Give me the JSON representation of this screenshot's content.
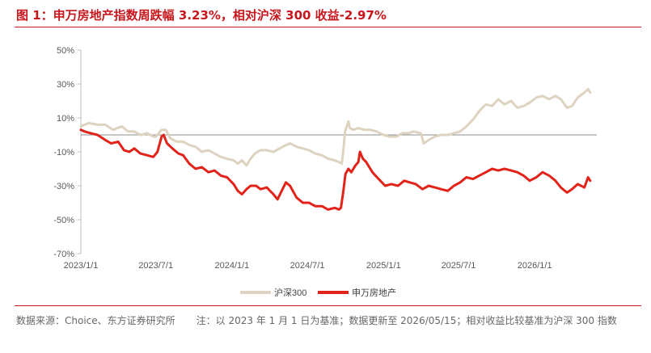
{
  "title": "图 1：申万房地产指数周跌幅 3.23%，相对沪深 300 收益-2.97%",
  "footer": {
    "source": "数据来源：Choice、东方证券研究所",
    "note": "注：以 2023 年 1 月 1 日为基准；数据更新至 2026/05/15；相对收益比较基准为沪深 300 指数"
  },
  "colors": {
    "hs300": "#ddd3c0",
    "realestate": "#e2231a",
    "title": "#c8161d"
  },
  "chart_data": {
    "type": "line",
    "ylim": [
      -70,
      50
    ],
    "yticks": [
      "50%",
      "30%",
      "10%",
      "-10%",
      "-30%",
      "-50%",
      "-70%"
    ],
    "xticks": [
      "2023/1/1",
      "2023/7/1",
      "2024/1/1",
      "2024/7/1",
      "2025/1/1",
      "2025/7/1",
      "2026/1/1"
    ],
    "legend_position": "bottom",
    "series": [
      {
        "name": "沪深300",
        "color": "#ddd3c0",
        "points": [
          [
            "2023-01-01",
            5
          ],
          [
            "2023-01-20",
            7
          ],
          [
            "2023-02-10",
            6
          ],
          [
            "2023-03-01",
            6
          ],
          [
            "2023-03-20",
            3
          ],
          [
            "2023-04-10",
            5
          ],
          [
            "2023-04-25",
            2
          ],
          [
            "2023-05-10",
            2
          ],
          [
            "2023-05-25",
            0
          ],
          [
            "2023-06-10",
            1
          ],
          [
            "2023-06-25",
            -1
          ],
          [
            "2023-07-01",
            -1
          ],
          [
            "2023-07-15",
            3
          ],
          [
            "2023-07-25",
            3
          ],
          [
            "2023-08-05",
            -2
          ],
          [
            "2023-08-20",
            -4
          ],
          [
            "2023-09-05",
            -4
          ],
          [
            "2023-09-20",
            -6
          ],
          [
            "2023-10-05",
            -7
          ],
          [
            "2023-10-20",
            -10
          ],
          [
            "2023-11-05",
            -9
          ],
          [
            "2023-11-20",
            -11
          ],
          [
            "2023-12-05",
            -13
          ],
          [
            "2023-12-20",
            -14
          ],
          [
            "2024-01-05",
            -15
          ],
          [
            "2024-01-15",
            -17
          ],
          [
            "2024-01-25",
            -15
          ],
          [
            "2024-02-05",
            -18
          ],
          [
            "2024-02-15",
            -14
          ],
          [
            "2024-02-25",
            -11
          ],
          [
            "2024-03-10",
            -9
          ],
          [
            "2024-03-25",
            -9
          ],
          [
            "2024-04-10",
            -10
          ],
          [
            "2024-04-25",
            -8
          ],
          [
            "2024-05-10",
            -6
          ],
          [
            "2024-05-20",
            -5
          ],
          [
            "2024-06-05",
            -7
          ],
          [
            "2024-06-20",
            -8
          ],
          [
            "2024-07-05",
            -9
          ],
          [
            "2024-07-20",
            -11
          ],
          [
            "2024-08-05",
            -12
          ],
          [
            "2024-08-20",
            -14
          ],
          [
            "2024-09-05",
            -15
          ],
          [
            "2024-09-15",
            -16
          ],
          [
            "2024-09-22",
            -17
          ],
          [
            "2024-09-26",
            -9
          ],
          [
            "2024-09-30",
            2
          ],
          [
            "2024-10-08",
            8
          ],
          [
            "2024-10-12",
            4
          ],
          [
            "2024-10-20",
            3
          ],
          [
            "2024-11-01",
            4
          ],
          [
            "2024-11-15",
            3
          ],
          [
            "2024-12-01",
            3
          ],
          [
            "2024-12-15",
            2
          ],
          [
            "2025-01-01",
            0
          ],
          [
            "2025-01-15",
            -1
          ],
          [
            "2025-02-01",
            -1
          ],
          [
            "2025-02-15",
            1
          ],
          [
            "2025-03-01",
            1
          ],
          [
            "2025-03-15",
            2
          ],
          [
            "2025-04-01",
            1
          ],
          [
            "2025-04-08",
            -5
          ],
          [
            "2025-04-20",
            -3
          ],
          [
            "2025-05-05",
            -1
          ],
          [
            "2025-05-20",
            0
          ],
          [
            "2025-06-05",
            0
          ],
          [
            "2025-06-20",
            1
          ],
          [
            "2025-07-05",
            2
          ],
          [
            "2025-07-20",
            5
          ],
          [
            "2025-08-05",
            9
          ],
          [
            "2025-08-20",
            14
          ],
          [
            "2025-09-05",
            18
          ],
          [
            "2025-09-20",
            17
          ],
          [
            "2025-10-05",
            21
          ],
          [
            "2025-10-20",
            18
          ],
          [
            "2025-11-05",
            20
          ],
          [
            "2025-11-20",
            16
          ],
          [
            "2025-12-05",
            17
          ],
          [
            "2025-12-20",
            19
          ],
          [
            "2026-01-05",
            22
          ],
          [
            "2026-01-20",
            23
          ],
          [
            "2026-02-05",
            21
          ],
          [
            "2026-02-20",
            23
          ],
          [
            "2026-03-05",
            21
          ],
          [
            "2026-03-20",
            16
          ],
          [
            "2026-04-01",
            17
          ],
          [
            "2026-04-15",
            22
          ],
          [
            "2026-05-01",
            25
          ],
          [
            "2026-05-10",
            27
          ],
          [
            "2026-05-15",
            25
          ]
        ]
      },
      {
        "name": "申万房地产",
        "color": "#e2231a",
        "points": [
          [
            "2023-01-01",
            3
          ],
          [
            "2023-01-10",
            2
          ],
          [
            "2023-01-25",
            1
          ],
          [
            "2023-02-10",
            0
          ],
          [
            "2023-03-01",
            -3
          ],
          [
            "2023-03-15",
            -5
          ],
          [
            "2023-04-01",
            -4
          ],
          [
            "2023-04-15",
            -9
          ],
          [
            "2023-04-28",
            -10
          ],
          [
            "2023-05-10",
            -8
          ],
          [
            "2023-05-25",
            -11
          ],
          [
            "2023-06-10",
            -12
          ],
          [
            "2023-06-25",
            -13
          ],
          [
            "2023-07-05",
            -10
          ],
          [
            "2023-07-15",
            -1
          ],
          [
            "2023-07-20",
            0
          ],
          [
            "2023-07-28",
            -5
          ],
          [
            "2023-08-10",
            -8
          ],
          [
            "2023-08-25",
            -11
          ],
          [
            "2023-09-05",
            -12
          ],
          [
            "2023-09-20",
            -17
          ],
          [
            "2023-10-05",
            -20
          ],
          [
            "2023-10-20",
            -19
          ],
          [
            "2023-11-05",
            -22
          ],
          [
            "2023-11-20",
            -21
          ],
          [
            "2023-12-05",
            -24
          ],
          [
            "2023-12-20",
            -25
          ],
          [
            "2024-01-05",
            -29
          ],
          [
            "2024-01-15",
            -33
          ],
          [
            "2024-01-25",
            -35
          ],
          [
            "2024-02-05",
            -32
          ],
          [
            "2024-02-15",
            -30
          ],
          [
            "2024-02-28",
            -30
          ],
          [
            "2024-03-10",
            -32
          ],
          [
            "2024-03-25",
            -31
          ],
          [
            "2024-04-10",
            -35
          ],
          [
            "2024-04-20",
            -38
          ],
          [
            "2024-04-28",
            -34
          ],
          [
            "2024-05-10",
            -28
          ],
          [
            "2024-05-20",
            -30
          ],
          [
            "2024-06-05",
            -37
          ],
          [
            "2024-06-20",
            -40
          ],
          [
            "2024-07-05",
            -40
          ],
          [
            "2024-07-20",
            -42
          ],
          [
            "2024-08-05",
            -42
          ],
          [
            "2024-08-20",
            -44
          ],
          [
            "2024-09-05",
            -43
          ],
          [
            "2024-09-15",
            -44
          ],
          [
            "2024-09-20",
            -43
          ],
          [
            "2024-09-26",
            -33
          ],
          [
            "2024-10-01",
            -23
          ],
          [
            "2024-10-08",
            -20
          ],
          [
            "2024-10-15",
            -22
          ],
          [
            "2024-10-25",
            -18
          ],
          [
            "2024-11-01",
            -16
          ],
          [
            "2024-11-05",
            -10
          ],
          [
            "2024-11-12",
            -14
          ],
          [
            "2024-11-20",
            -16
          ],
          [
            "2024-12-05",
            -22
          ],
          [
            "2024-12-20",
            -26
          ],
          [
            "2025-01-05",
            -30
          ],
          [
            "2025-01-20",
            -29
          ],
          [
            "2025-02-05",
            -30
          ],
          [
            "2025-02-20",
            -27
          ],
          [
            "2025-03-05",
            -28
          ],
          [
            "2025-03-20",
            -29
          ],
          [
            "2025-04-05",
            -32
          ],
          [
            "2025-04-20",
            -30
          ],
          [
            "2025-05-05",
            -31
          ],
          [
            "2025-05-20",
            -32
          ],
          [
            "2025-06-05",
            -33
          ],
          [
            "2025-06-20",
            -30
          ],
          [
            "2025-07-05",
            -28
          ],
          [
            "2025-07-20",
            -25
          ],
          [
            "2025-08-05",
            -26
          ],
          [
            "2025-08-20",
            -24
          ],
          [
            "2025-09-05",
            -22
          ],
          [
            "2025-09-20",
            -20
          ],
          [
            "2025-10-05",
            -21
          ],
          [
            "2025-10-20",
            -20
          ],
          [
            "2025-11-05",
            -21
          ],
          [
            "2025-11-20",
            -22
          ],
          [
            "2025-12-05",
            -24
          ],
          [
            "2025-12-20",
            -27
          ],
          [
            "2026-01-05",
            -25
          ],
          [
            "2026-01-20",
            -22
          ],
          [
            "2026-02-05",
            -24
          ],
          [
            "2026-02-20",
            -27
          ],
          [
            "2026-03-05",
            -31
          ],
          [
            "2026-03-20",
            -34
          ],
          [
            "2026-04-01",
            -32
          ],
          [
            "2026-04-15",
            -29
          ],
          [
            "2026-05-01",
            -31
          ],
          [
            "2026-05-10",
            -25
          ],
          [
            "2026-05-15",
            -27
          ]
        ]
      }
    ]
  }
}
